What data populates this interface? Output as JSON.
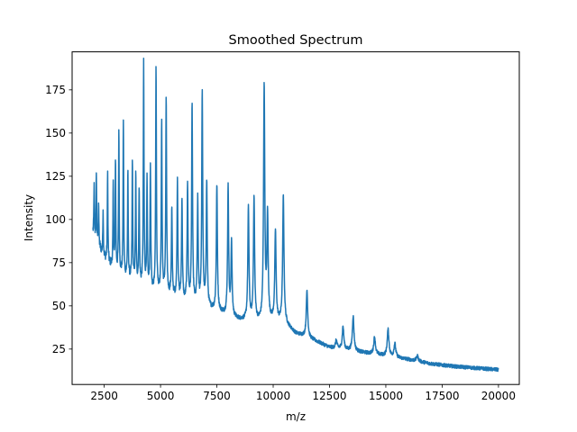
{
  "chart_data": {
    "type": "line",
    "title": "Smoothed Spectrum",
    "xlabel": "m/z",
    "ylabel": "Intensity",
    "xlim": [
      1075,
      20925
    ],
    "ylim": [
      4.5,
      197
    ],
    "xticks": [
      2500,
      5000,
      7500,
      10000,
      12500,
      15000,
      17500,
      20000
    ],
    "xtick_labels": [
      "2500",
      "5000",
      "7500",
      "10000",
      "12500",
      "15000",
      "17500",
      "20000"
    ],
    "yticks": [
      25,
      50,
      75,
      100,
      125,
      150,
      175
    ],
    "ytick_labels": [
      "25",
      "50",
      "75",
      "100",
      "125",
      "150",
      "175"
    ],
    "grid": false,
    "series": [
      {
        "color": "#1f77b4",
        "baseline": [
          [
            2000,
            92
          ],
          [
            2500,
            78
          ],
          [
            3000,
            70
          ],
          [
            3500,
            66
          ],
          [
            4000,
            62
          ],
          [
            4500,
            58
          ],
          [
            5000,
            57
          ],
          [
            5500,
            55
          ],
          [
            6000,
            52
          ],
          [
            6500,
            50
          ],
          [
            7000,
            49
          ],
          [
            7500,
            47
          ],
          [
            8000,
            44
          ],
          [
            8500,
            42
          ],
          [
            9000,
            41
          ],
          [
            9500,
            40
          ],
          [
            10000,
            41
          ],
          [
            10500,
            40
          ],
          [
            11000,
            34
          ],
          [
            11500,
            32
          ],
          [
            12000,
            29
          ],
          [
            12500,
            26
          ],
          [
            13000,
            25
          ],
          [
            14000,
            23
          ],
          [
            15000,
            21
          ],
          [
            16000,
            19
          ],
          [
            17000,
            16.5
          ],
          [
            18000,
            15
          ],
          [
            19000,
            14
          ],
          [
            20000,
            13
          ]
        ],
        "peaks": [
          [
            2050,
            119
          ],
          [
            2150,
            128
          ],
          [
            2250,
            110
          ],
          [
            2450,
            106
          ],
          [
            2650,
            128
          ],
          [
            2900,
            120
          ],
          [
            3000,
            135
          ],
          [
            3150,
            152
          ],
          [
            3350,
            157
          ],
          [
            3550,
            126
          ],
          [
            3750,
            133
          ],
          [
            3900,
            125
          ],
          [
            4050,
            118
          ],
          [
            4250,
            189
          ],
          [
            4400,
            121
          ],
          [
            4550,
            130
          ],
          [
            4800,
            187
          ],
          [
            5050,
            155
          ],
          [
            5250,
            170
          ],
          [
            5500,
            105
          ],
          [
            5750,
            122
          ],
          [
            5950,
            111
          ],
          [
            6200,
            120
          ],
          [
            6400,
            165
          ],
          [
            6650,
            110
          ],
          [
            6850,
            173
          ],
          [
            7050,
            121
          ],
          [
            7500,
            120
          ],
          [
            8000,
            118
          ],
          [
            8150,
            86
          ],
          [
            8900,
            106
          ],
          [
            9150,
            112
          ],
          [
            9600,
            177
          ],
          [
            9750,
            101
          ],
          [
            10100,
            93
          ],
          [
            10450,
            113
          ],
          [
            11500,
            59
          ],
          [
            12800,
            30
          ],
          [
            13100,
            38
          ],
          [
            13550,
            44
          ],
          [
            14500,
            32
          ],
          [
            15100,
            36
          ],
          [
            15400,
            28
          ],
          [
            16400,
            21
          ]
        ],
        "noise": 3
      }
    ]
  }
}
